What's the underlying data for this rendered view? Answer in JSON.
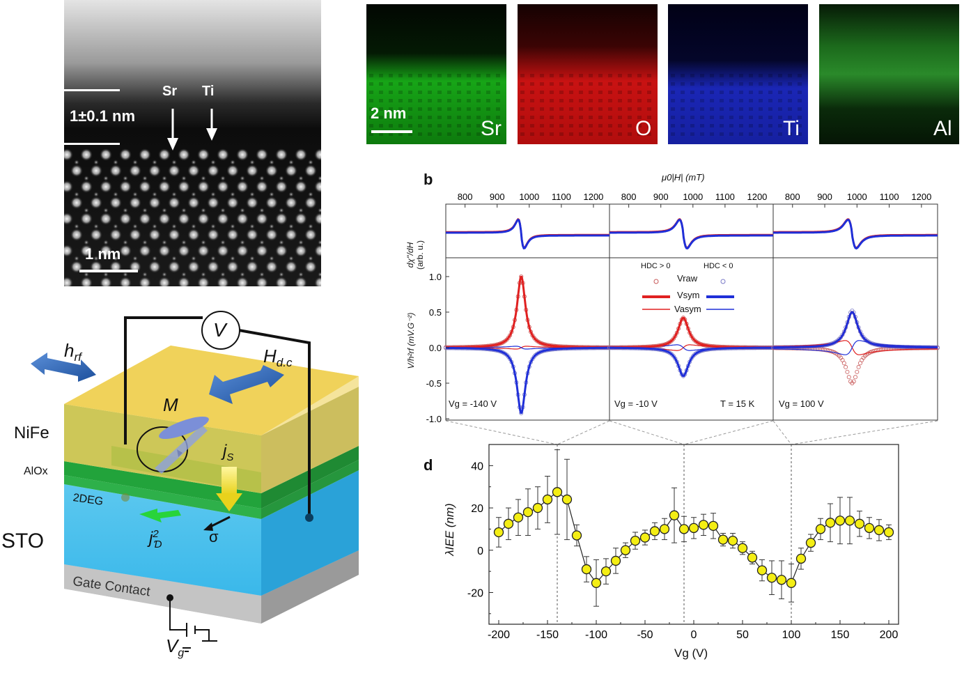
{
  "stem": {
    "thickness_label": "1±0.1 nm",
    "arrow_sr": "Sr",
    "arrow_ti": "Ti",
    "scale_label": "1 nm"
  },
  "eds": {
    "scale_label": "2 nm",
    "maps": [
      {
        "element": "Sr",
        "color": "#1fb51f"
      },
      {
        "element": "O",
        "color": "#e01414"
      },
      {
        "element": "Ti",
        "color": "#1f2ee0"
      },
      {
        "element": "Al",
        "color": "#1f8f1f"
      }
    ]
  },
  "device": {
    "voltmeter": "V",
    "h_rf_main": "h",
    "h_rf_sub": "rf",
    "h_dc_main": "H",
    "h_dc_sub": "d.c",
    "magnetization": "M",
    "js_main": "j",
    "js_sub": "S",
    "sigma": "σ",
    "jc_main": "j",
    "jc_sup": "2",
    "jc_sub": "Ɗ",
    "layers": {
      "nife": "NiFe",
      "alox": "AlOx",
      "twodeg": "2DEG",
      "sto": "STO",
      "gate": "Gate Contact"
    },
    "vg_main": "V",
    "vg_sub": "g"
  },
  "panel_b": {
    "letter": "b",
    "top_axis_label": "μ0|H| (mT)",
    "top_ticks": [
      "800",
      "900",
      "1000",
      "1100",
      "1200"
    ],
    "upper_ylabel": "dχ''/dH",
    "upper_yunit": "(arb. u.)",
    "lower_ylabel": "V/h²rf (mV.G⁻²)",
    "lower_yticks": [
      "1.0",
      "0.5",
      "0.0",
      "-0.5",
      "-1.0"
    ],
    "legend": {
      "hdc_pos": "HDC > 0",
      "hdc_neg": "HDC < 0",
      "raw": "Vraw",
      "sym": "Vsym",
      "asym": "Vasym"
    },
    "subpanels": [
      {
        "vg": "Vg = -140 V",
        "extra": ""
      },
      {
        "vg": "Vg = -10 V",
        "extra": "T = 15 K"
      },
      {
        "vg": "Vg = 100 V",
        "extra": ""
      }
    ]
  },
  "panel_d": {
    "letter": "d",
    "ylabel": "λIEE (nm)",
    "xlabel": "Vg (V)",
    "xticks": [
      "-200",
      "-150",
      "-100",
      "-50",
      "0",
      "50",
      "100",
      "150",
      "200"
    ],
    "yticks": [
      "40",
      "20",
      "0",
      "-20"
    ]
  },
  "chart_data": {
    "type": "scatter",
    "title": "",
    "xlabel": "Vg (V)",
    "ylabel": "λIEE (nm)",
    "xlim": [
      -210,
      210
    ],
    "ylim": [
      -35,
      50
    ],
    "marker_color": "#f4ee14",
    "x": [
      -200,
      -190,
      -180,
      -170,
      -160,
      -150,
      -140,
      -130,
      -120,
      -110,
      -100,
      -90,
      -80,
      -70,
      -60,
      -50,
      -40,
      -30,
      -20,
      -10,
      0,
      10,
      20,
      30,
      40,
      50,
      60,
      70,
      80,
      90,
      100,
      110,
      120,
      130,
      140,
      150,
      160,
      170,
      180,
      190,
      200
    ],
    "y": [
      8.5,
      12.5,
      15.5,
      18,
      20,
      24,
      27.5,
      24,
      7,
      -9,
      -15.5,
      -10,
      -5,
      0,
      4.5,
      6,
      9,
      10,
      16.5,
      10,
      10.5,
      12,
      11.5,
      5,
      4.5,
      1,
      -3.5,
      -9.5,
      -13,
      -14,
      -15.5,
      -4,
      3.5,
      10,
      13,
      14,
      14,
      12.5,
      10.5,
      9.5,
      8.5
    ],
    "error": [
      7,
      7.5,
      8.5,
      11,
      10,
      11,
      20,
      19,
      5,
      6,
      11,
      6,
      6,
      3.5,
      4,
      3.5,
      4,
      5,
      13,
      6,
      5,
      5,
      6,
      3,
      3.5,
      3,
      3,
      5,
      8,
      9,
      9,
      5,
      4,
      5,
      9,
      11,
      11,
      6,
      5,
      5,
      3.5
    ],
    "vlines": [
      -140,
      -10,
      100
    ]
  }
}
